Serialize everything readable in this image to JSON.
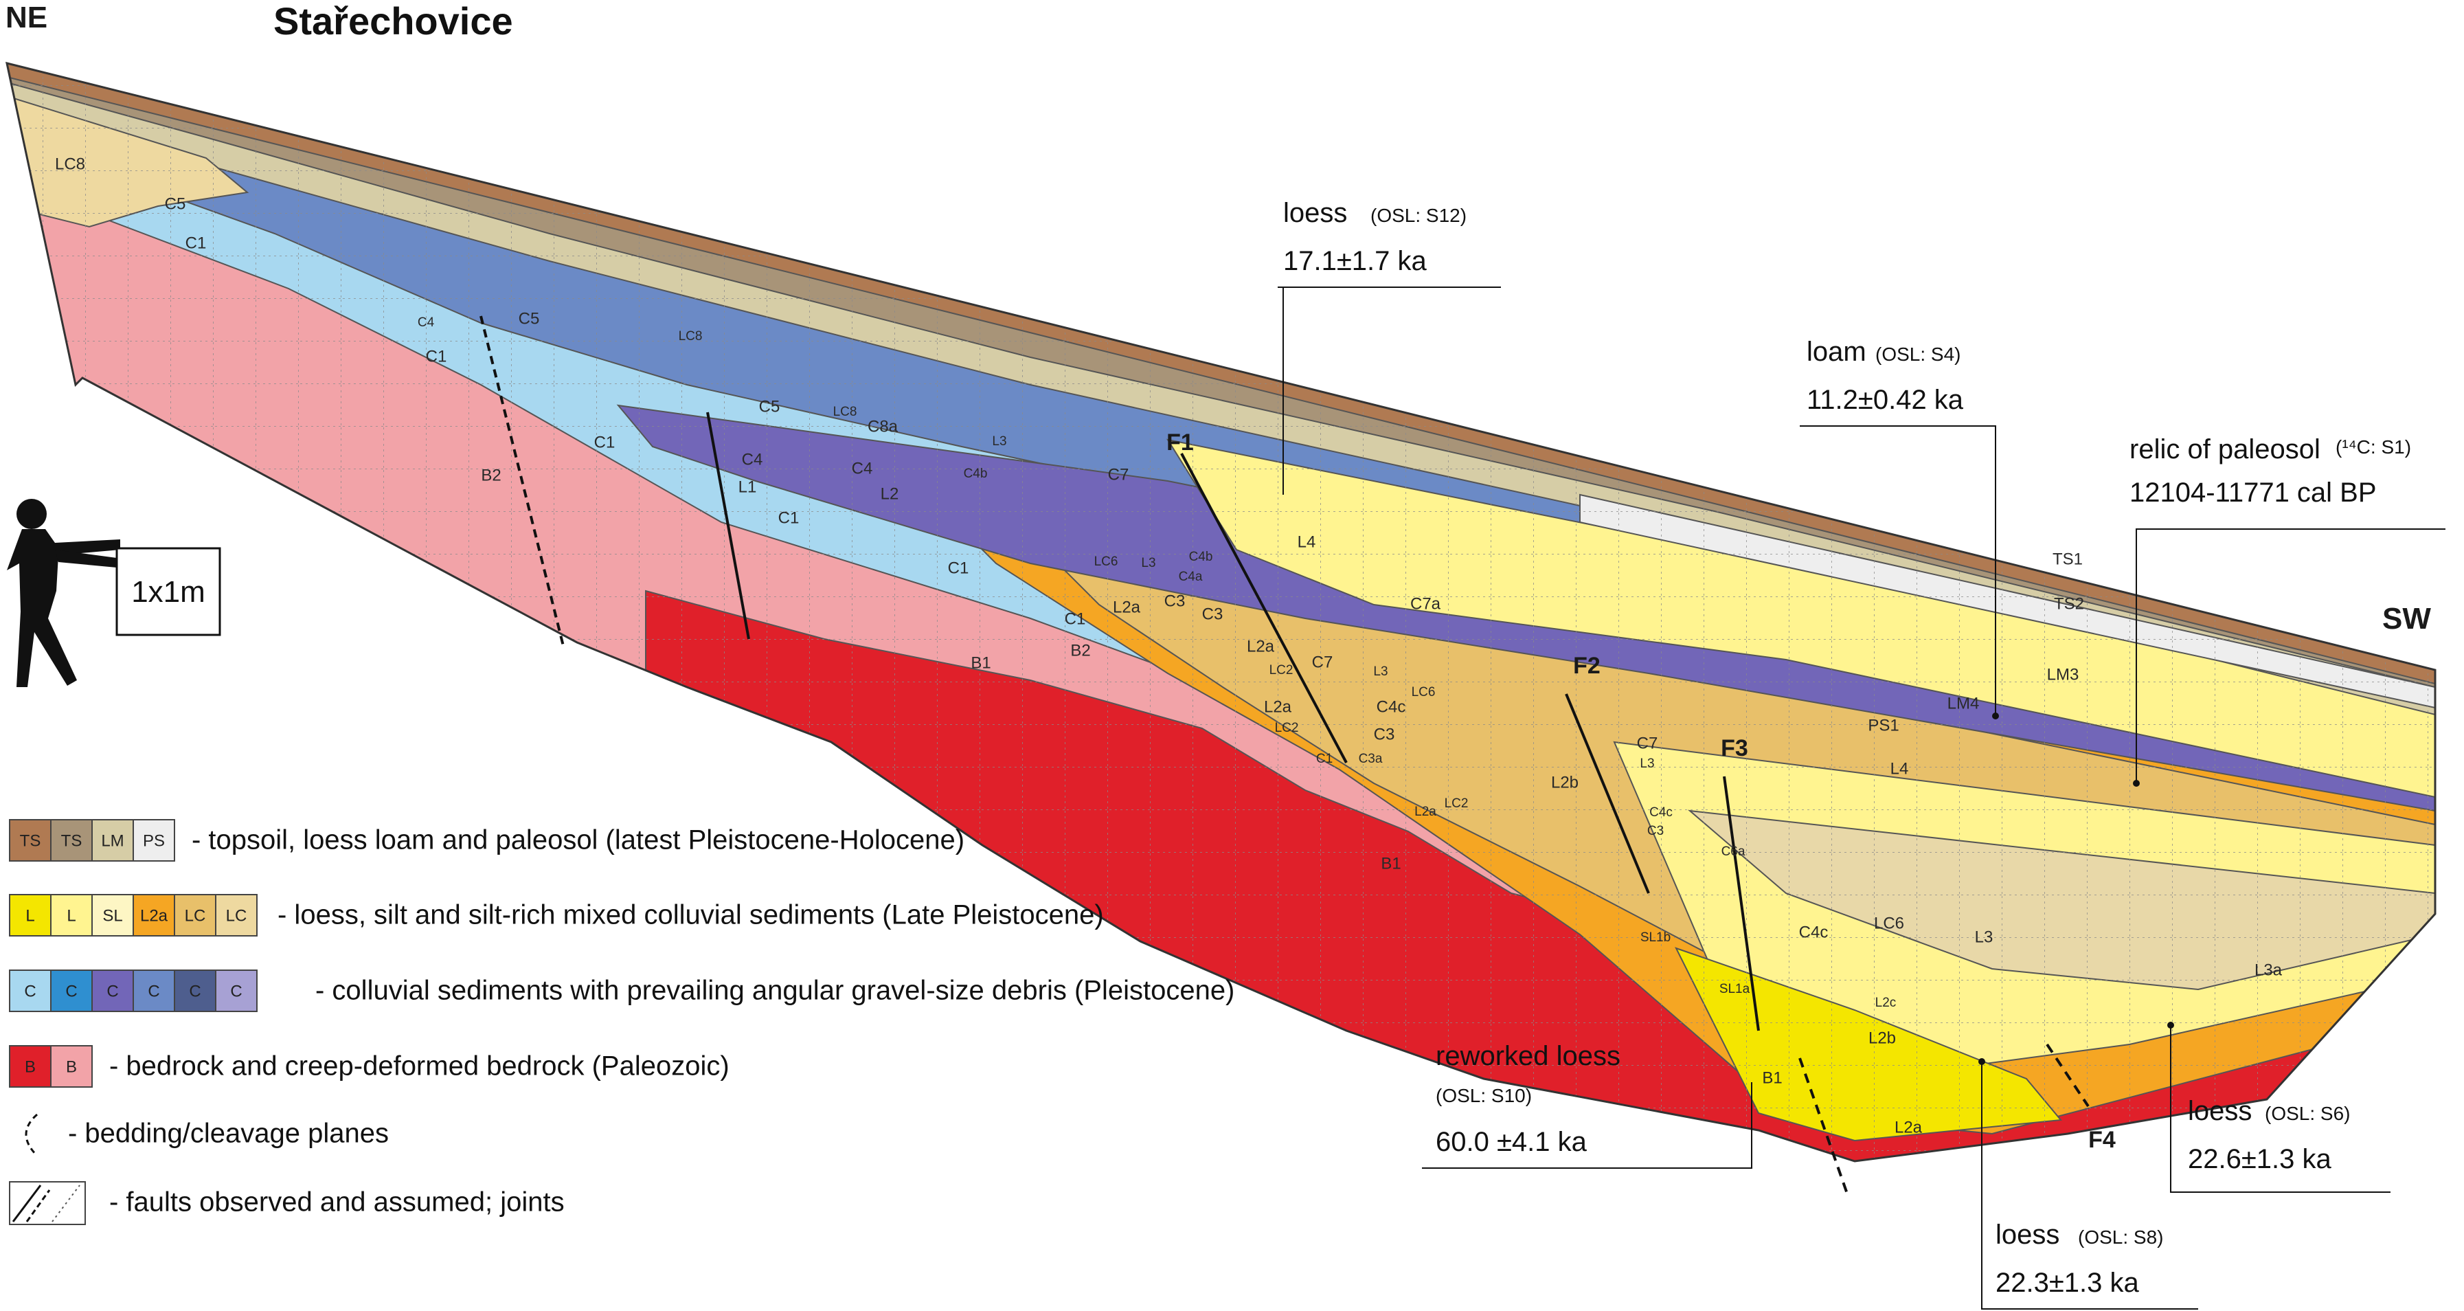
{
  "title": "Stařechovice",
  "directions": {
    "left": "NE",
    "right": "SW"
  },
  "scale_label": "1x1m",
  "faults": [
    "F1",
    "F2",
    "F3",
    "F4"
  ],
  "unit_labels": {
    "LC8": "LC8",
    "C5": "C5",
    "C1": "C1",
    "C4": "C4",
    "B2": "B2",
    "B1": "B1",
    "L1": "L1",
    "L2": "L2",
    "L3": "L3",
    "L4": "L4",
    "C8a": "C8a",
    "C7": "C7",
    "C7a": "C7a",
    "LC6": "LC6",
    "C4b": "C4b",
    "C4a": "C4a",
    "C3": "C3",
    "L2a": "L2a",
    "LC2": "LC2",
    "C4c": "C4c",
    "C3a": "C3a",
    "L2b": "L2b",
    "C6a": "C6a",
    "SL1b": "SL1b",
    "SL1a": "SL1a",
    "L2c": "L2c",
    "L3a": "L3a",
    "TS1": "TS1",
    "TS2": "TS2",
    "LM3": "LM3",
    "LM4": "LM4",
    "PS1": "PS1"
  },
  "annotations": [
    {
      "main": "loess",
      "sub": "(OSL: S12)",
      "value": "17.1±1.7 ka"
    },
    {
      "main": "loam",
      "sub": "(OSL: S4)",
      "value": "11.2±0.42 ka"
    },
    {
      "main": "relic of paleosol",
      "sub": "(¹⁴C: S1)",
      "value": "12104-11771 cal BP"
    },
    {
      "main": "reworked loess",
      "sub": "(OSL: S10)",
      "value": "60.0 ±4.1 ka"
    },
    {
      "main": "loess",
      "sub": "(OSL: S6)",
      "value": "22.6±1.3 ka"
    },
    {
      "main": "loess",
      "sub": "(OSL: S8)",
      "value": "22.3±1.3 ka"
    }
  ],
  "legend": [
    {
      "boxes": [
        {
          "label": "TS",
          "color": "#b07a52"
        },
        {
          "label": "TS",
          "color": "#a89478"
        },
        {
          "label": "LM",
          "color": "#d6cda6"
        },
        {
          "label": "PS",
          "color": "#eeeeee"
        }
      ],
      "text": "- topsoil, loess loam and paleosol (latest Pleistocene-Holocene)"
    },
    {
      "boxes": [
        {
          "label": "L",
          "color": "#f4e600"
        },
        {
          "label": "L",
          "color": "#fff490"
        },
        {
          "label": "SL",
          "color": "#fdf6c4"
        },
        {
          "label": "L2a",
          "color": "#f5a623"
        },
        {
          "label": "LC",
          "color": "#e8c06a"
        },
        {
          "label": "LC",
          "color": "#eed9a0"
        }
      ],
      "text": "- loess, silt and silt-rich mixed colluvial sediments (Late Pleistocene)"
    },
    {
      "boxes": [
        {
          "label": "C",
          "color": "#a8d8f0"
        },
        {
          "label": "C",
          "color": "#2f8fd0"
        },
        {
          "label": "C",
          "color": "#7266b8"
        },
        {
          "label": "C",
          "color": "#6b8ac6"
        },
        {
          "label": "C",
          "color": "#4e5e8e"
        },
        {
          "label": "C",
          "color": "#a7a1d4"
        }
      ],
      "text": "- colluvial sediments with prevailing angular gravel-size debris (Pleistocene)"
    },
    {
      "boxes": [
        {
          "label": "B",
          "color": "#e0202a"
        },
        {
          "label": "B",
          "color": "#f2a3a8"
        }
      ],
      "text": "- bedrock and creep-deformed bedrock (Paleozoic)"
    },
    {
      "boxes": [],
      "symbol": "bedding",
      "text": "- bedding/cleavage planes"
    },
    {
      "boxes": [],
      "symbol": "faults",
      "text": "- faults observed and assumed; joints"
    }
  ]
}
